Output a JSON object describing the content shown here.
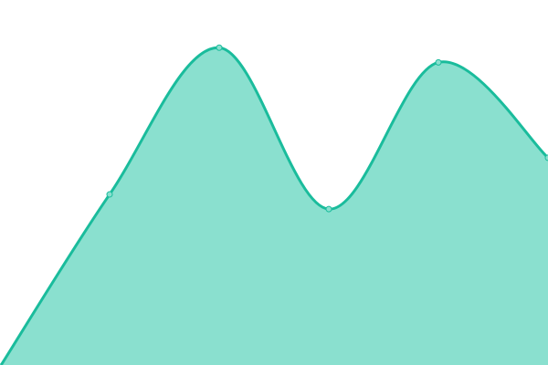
{
  "chart_data": {
    "type": "area",
    "x": [
      0,
      1,
      2,
      3,
      4,
      5
    ],
    "values": [
      0,
      47,
      87,
      43,
      83,
      57
    ],
    "ylim": [
      0,
      100
    ],
    "smooth": true,
    "markers": true,
    "grid": false,
    "axes_visible": false,
    "colors": {
      "line": "#1abc9c",
      "fill": "#8ae0cf",
      "marker_fill": "#8ae0cf",
      "marker_stroke": "#1abc9c"
    }
  }
}
